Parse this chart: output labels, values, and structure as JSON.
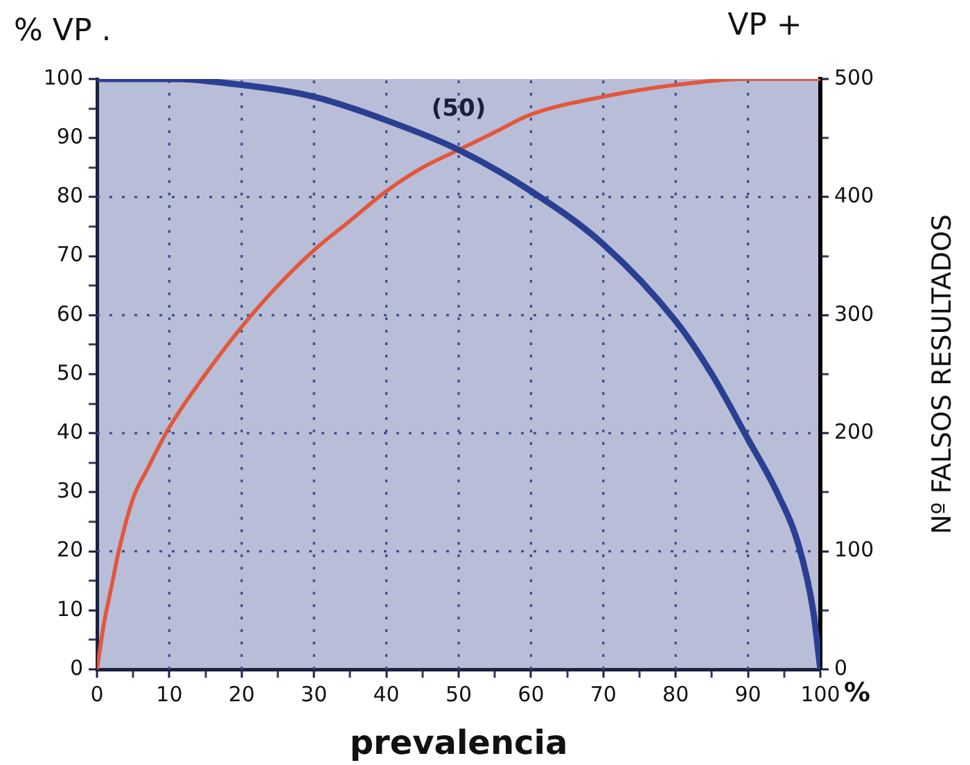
{
  "chart_data": {
    "type": "line",
    "ylabel": "% VP .",
    "xlabel": "prevalencia",
    "y2label": "Nº FALSOS RESULTADOS",
    "annotations": [
      {
        "text": "(50)",
        "x": 50,
        "y": 88
      },
      "%"
    ],
    "series": [
      {
        "color": "#2b3f92",
        "x": [
          0,
          10,
          20,
          30,
          40,
          50,
          60,
          70,
          80,
          85,
          90,
          94,
          97,
          99,
          100
        ],
        "values": [
          100,
          100,
          99,
          97,
          93,
          88,
          81,
          72,
          59,
          50,
          39,
          30,
          21,
          10,
          0
        ]
      },
      {
        "name": "VP +",
        "color": "#e4563c",
        "x": [
          0,
          1,
          2,
          3,
          5,
          7,
          10,
          15,
          20,
          25,
          30,
          35,
          40,
          45,
          50,
          55,
          60,
          70,
          80,
          90,
          100
        ],
        "values": [
          0,
          8,
          14,
          20,
          29,
          34,
          41,
          50,
          58,
          65,
          71,
          76,
          81,
          85,
          88,
          91,
          94,
          97,
          99,
          100,
          100
        ]
      }
    ],
    "xlim": [
      0,
      100
    ],
    "xticks": [
      0,
      {
        "value": 5,
        "label": null
      },
      10,
      {
        "value": 15,
        "label": null
      },
      20,
      {
        "value": 25,
        "label": null
      },
      30,
      {
        "value": 35,
        "label": null
      },
      40,
      {
        "value": 45,
        "label": null
      },
      50,
      {
        "value": 55,
        "label": null
      },
      60,
      {
        "value": 65,
        "label": null
      },
      70,
      {
        "value": 75,
        "label": null
      },
      80,
      {
        "value": 85,
        "label": null
      },
      90,
      {
        "value": 95,
        "label": null
      },
      100
    ],
    "ylim": [
      0,
      100
    ],
    "yticks": [
      0,
      {
        "value": 5,
        "label": null
      },
      10,
      {
        "value": 15,
        "label": null
      },
      20,
      {
        "value": 25,
        "label": null
      },
      30,
      {
        "value": 35,
        "label": null
      },
      40,
      {
        "value": 45,
        "label": null
      },
      50,
      {
        "value": 55,
        "label": null
      },
      60,
      {
        "value": 65,
        "label": null
      },
      70,
      {
        "value": 75,
        "label": null
      },
      80,
      {
        "value": 85,
        "label": null
      },
      90,
      {
        "value": 95,
        "label": null
      },
      100
    ],
    "y2lim": [
      0,
      500
    ],
    "y2ticks": [
      0,
      {
        "value": 50,
        "label": null
      },
      100,
      {
        "value": 150,
        "label": null
      },
      200,
      {
        "value": 250,
        "label": null
      },
      300,
      {
        "value": 350,
        "label": null
      },
      400,
      {
        "value": 450,
        "label": null
      },
      500
    ],
    "grid": true,
    "legend": false,
    "marker": "none",
    "line_style": "solid"
  }
}
